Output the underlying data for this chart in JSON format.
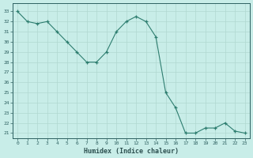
{
  "x": [
    0,
    1,
    2,
    3,
    4,
    5,
    6,
    7,
    8,
    9,
    10,
    11,
    12,
    13,
    14,
    15,
    16,
    17,
    18,
    19,
    20,
    21,
    22,
    23
  ],
  "y": [
    33,
    32,
    31.8,
    32,
    31,
    30,
    29,
    28,
    28,
    29,
    31,
    32,
    32.5,
    32,
    30.5,
    25,
    23.5,
    21,
    21,
    21.5,
    21.5,
    22,
    21.2,
    21
  ],
  "xlabel": "Humidex (Indice chaleur)",
  "ylabel": "",
  "ylim_min": 20.5,
  "ylim_max": 33.8,
  "xlim_min": -0.5,
  "xlim_max": 23.5,
  "line_color": "#2d7d6f",
  "bg_color": "#c8ede8",
  "grid_color": "#b0d8d0",
  "tick_color": "#2d6060",
  "label_color": "#2d5050",
  "yticks": [
    21,
    22,
    23,
    24,
    25,
    26,
    27,
    28,
    29,
    30,
    31,
    32,
    33
  ],
  "xticks": [
    0,
    1,
    2,
    3,
    4,
    5,
    6,
    7,
    8,
    9,
    10,
    11,
    12,
    13,
    14,
    15,
    16,
    17,
    18,
    19,
    20,
    21,
    22,
    23
  ]
}
